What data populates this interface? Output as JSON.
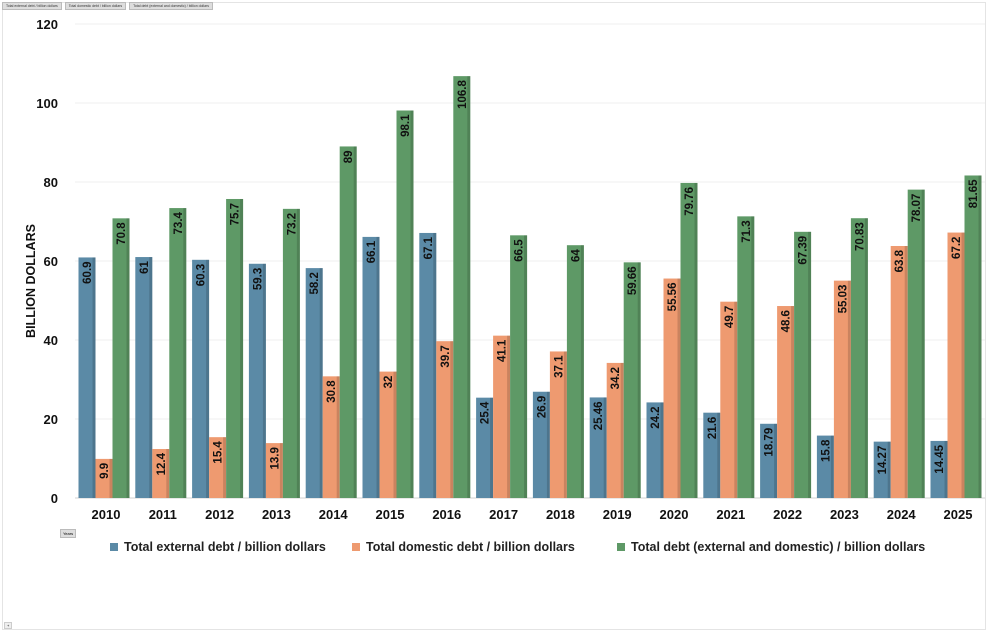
{
  "field_buttons": [
    "Total external debt / billion dollars",
    "Total domestic debt / billion dollars",
    "Total debt (external and domestic) / billion dollars"
  ],
  "axis_field_button": "Years",
  "chart_data": {
    "type": "bar",
    "title": "",
    "xlabel": "",
    "ylabel": "BILLION DOLLARS",
    "ylim": [
      0,
      120
    ],
    "yticks": [
      0,
      20,
      40,
      60,
      80,
      100,
      120
    ],
    "grid": true,
    "legend_position": "bottom",
    "categories": [
      "2010",
      "2011",
      "2012",
      "2013",
      "2014",
      "2015",
      "2016",
      "2017",
      "2018",
      "2019",
      "2020",
      "2021",
      "2022",
      "2023",
      "2024",
      "2025"
    ],
    "series": [
      {
        "name": "Total external debt / billion dollars",
        "color": "#5b8aa6",
        "values": [
          60.9,
          61,
          60.3,
          59.3,
          58.2,
          66.1,
          67.1,
          25.4,
          26.9,
          25.46,
          24.2,
          21.6,
          18.79,
          15.8,
          14.27,
          14.45
        ]
      },
      {
        "name": "Total domestic debt / billion dollars",
        "color": "#ee9a70",
        "values": [
          9.9,
          12.4,
          15.4,
          13.9,
          30.8,
          32,
          39.7,
          41.1,
          37.1,
          34.2,
          55.56,
          49.7,
          48.6,
          55.03,
          63.8,
          67.2
        ]
      },
      {
        "name": "Total debt (external and domestic) / billion dollars",
        "color": "#5e9966",
        "values": [
          70.8,
          73.4,
          75.7,
          73.2,
          89,
          98.1,
          106.8,
          66.5,
          64,
          59.66,
          79.76,
          71.3,
          67.39,
          70.83,
          78.07,
          81.65
        ]
      }
    ]
  }
}
